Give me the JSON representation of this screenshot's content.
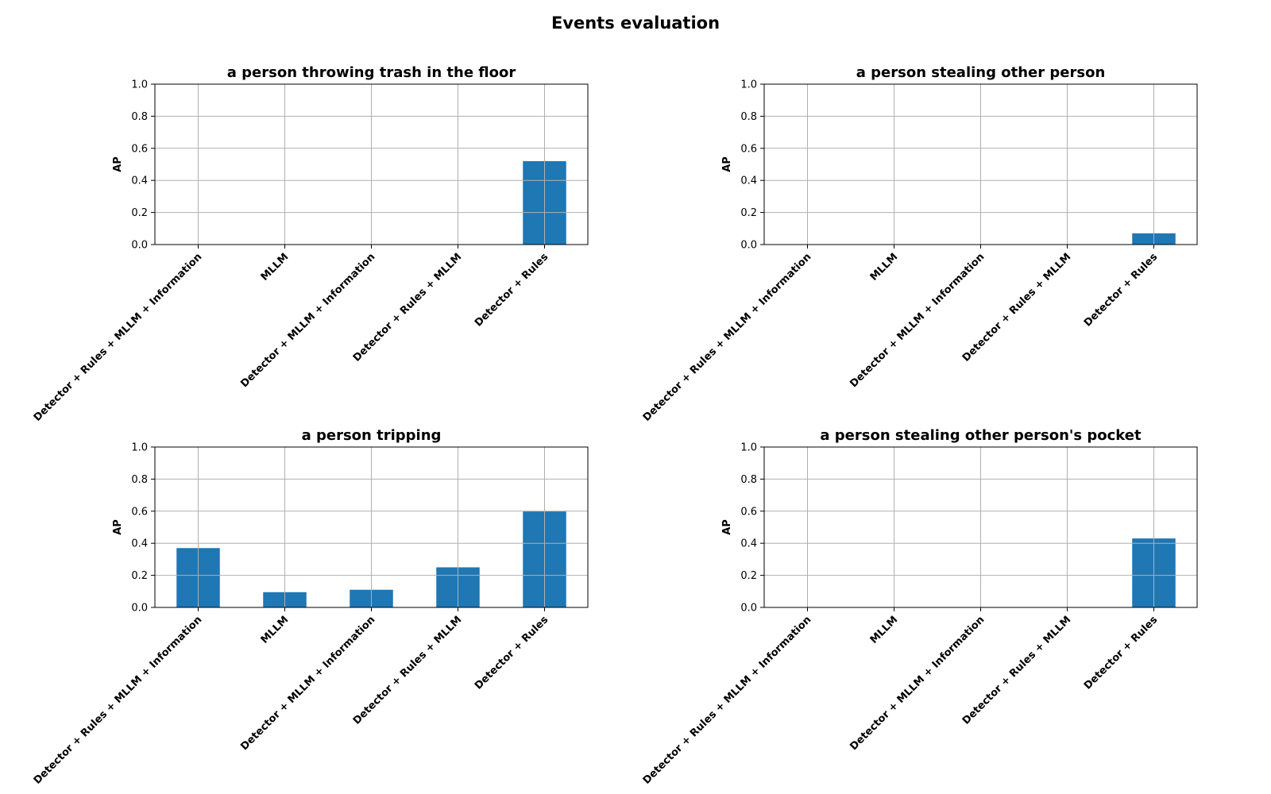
{
  "figure": {
    "title": "Events evaluation"
  },
  "chart_data": [
    {
      "type": "bar",
      "title": "a person throwing trash in the floor",
      "xlabel": "",
      "ylabel": "AP",
      "ylim": [
        0,
        1
      ],
      "yticks": [
        "0.0",
        "0.2",
        "0.4",
        "0.6",
        "0.8",
        "1.0"
      ],
      "grid": true,
      "categories": [
        "Detector + Rules + MLLM + Information",
        "MLLM",
        "Detector + MLLM + Information",
        "Detector + Rules + MLLM",
        "Detector + Rules"
      ],
      "values": [
        0,
        0,
        0,
        0,
        0.52
      ],
      "color": "#1f77b4"
    },
    {
      "type": "bar",
      "title": "a person stealing other person",
      "xlabel": "",
      "ylabel": "AP",
      "ylim": [
        0,
        1
      ],
      "yticks": [
        "0.0",
        "0.2",
        "0.4",
        "0.6",
        "0.8",
        "1.0"
      ],
      "grid": true,
      "categories": [
        "Detector + Rules + MLLM + Information",
        "MLLM",
        "Detector + MLLM + Information",
        "Detector + Rules + MLLM",
        "Detector + Rules"
      ],
      "values": [
        0,
        0,
        0,
        0,
        0.07
      ],
      "color": "#1f77b4"
    },
    {
      "type": "bar",
      "title": "a person tripping",
      "xlabel": "",
      "ylabel": "AP",
      "ylim": [
        0,
        1
      ],
      "yticks": [
        "0.0",
        "0.2",
        "0.4",
        "0.6",
        "0.8",
        "1.0"
      ],
      "grid": true,
      "categories": [
        "Detector + Rules + MLLM + Information",
        "MLLM",
        "Detector + MLLM + Information",
        "Detector + Rules + MLLM",
        "Detector + Rules"
      ],
      "values": [
        0.37,
        0.095,
        0.11,
        0.25,
        0.6
      ],
      "color": "#1f77b4"
    },
    {
      "type": "bar",
      "title": "a person stealing other person's pocket",
      "xlabel": "",
      "ylabel": "AP",
      "ylim": [
        0,
        1
      ],
      "yticks": [
        "0.0",
        "0.2",
        "0.4",
        "0.6",
        "0.8",
        "1.0"
      ],
      "grid": true,
      "categories": [
        "Detector + Rules + MLLM + Information",
        "MLLM",
        "Detector + MLLM + Information",
        "Detector + Rules + MLLM",
        "Detector + Rules"
      ],
      "values": [
        0,
        0,
        0,
        0,
        0.43
      ],
      "color": "#1f77b4"
    }
  ]
}
